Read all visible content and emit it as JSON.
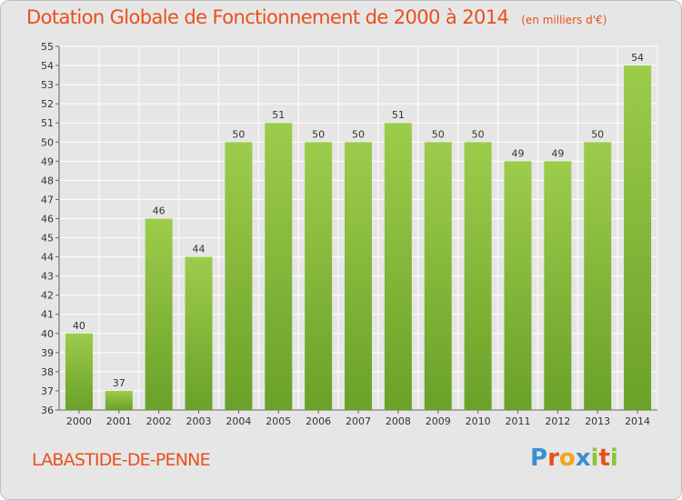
{
  "header": {
    "title": "Dotation Globale de Fonctionnement de 2000 à 2014",
    "unit": "(en milliers d'€)"
  },
  "footer": {
    "place": "LABASTIDE-DE-PENNE",
    "logo": "Proxiti"
  },
  "colors": {
    "title": "#e8511b",
    "bar_top": "#9dcc4b",
    "bar_bottom": "#6aa128",
    "background": "#e6e6e6",
    "grid": "#ffffff"
  },
  "chart_data": {
    "type": "bar",
    "title": "Dotation Globale de Fonctionnement de 2000 à 2014",
    "subtitle": "(en milliers d'€)",
    "categories": [
      "2000",
      "2001",
      "2002",
      "2003",
      "2004",
      "2005",
      "2006",
      "2007",
      "2008",
      "2009",
      "2010",
      "2011",
      "2012",
      "2013",
      "2014"
    ],
    "values": [
      40,
      37,
      46,
      44,
      50,
      51,
      50,
      50,
      51,
      50,
      50,
      49,
      49,
      50,
      54
    ],
    "ylim": [
      36,
      55
    ],
    "yticks": [
      36,
      37,
      38,
      39,
      40,
      41,
      42,
      43,
      44,
      45,
      46,
      47,
      48,
      49,
      50,
      51,
      52,
      53,
      54,
      55
    ],
    "grid": true,
    "data_labels": true
  }
}
